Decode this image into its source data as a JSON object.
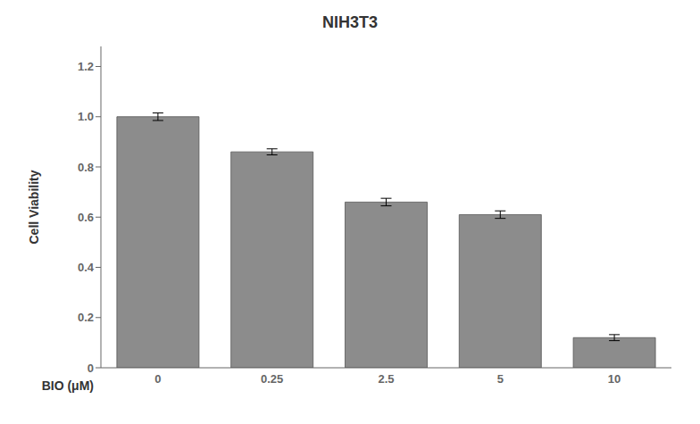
{
  "chart_data": {
    "type": "bar",
    "title": "NIH3T3",
    "ylabel": "Cell Viability",
    "xlabel": "BIO (μM)",
    "categories": [
      "0",
      "0.25",
      "2.5",
      "5",
      "10"
    ],
    "values": [
      1.0,
      0.86,
      0.66,
      0.61,
      0.12
    ],
    "errors": [
      0.015,
      0.012,
      0.015,
      0.015,
      0.012
    ],
    "color": "#8c8c8c",
    "ylim": [
      0,
      1.28
    ],
    "yticks": [
      0,
      0.2,
      0.4,
      0.6,
      0.8,
      {
        "value": 1.0,
        "label": "1.0"
      },
      1.2
    ],
    "grid": false
  }
}
